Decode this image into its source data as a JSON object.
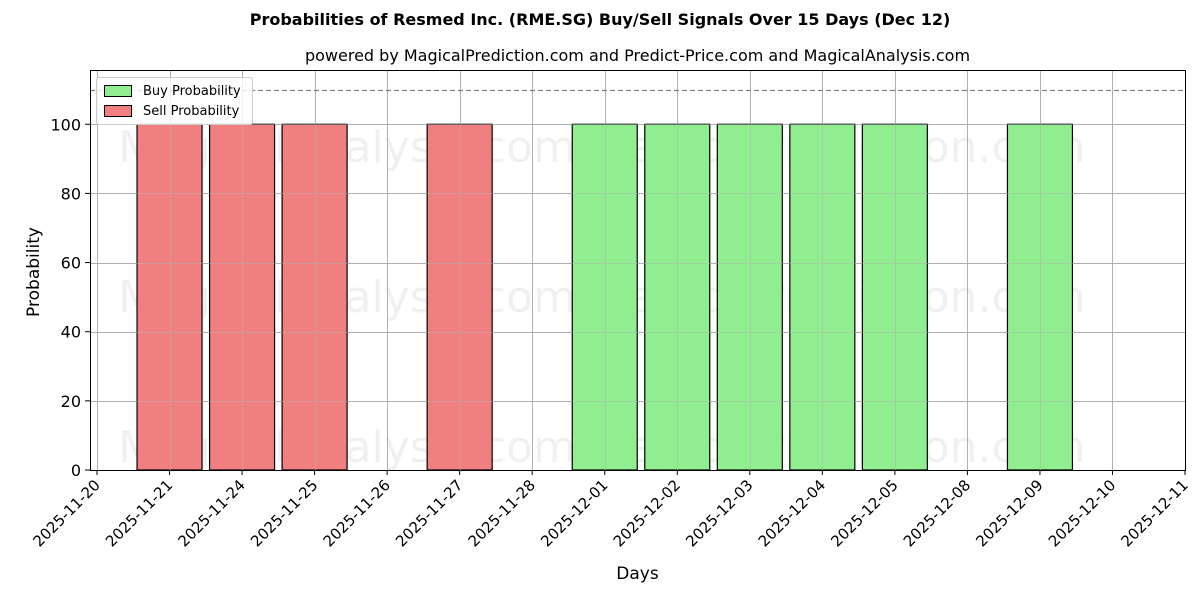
{
  "chart_data": {
    "type": "bar",
    "title": "Probabilities of Resmed Inc. (RME.SG) Buy/Sell Signals Over 15 Days (Dec 12)",
    "subtitle": "powered by MagicalPrediction.com and Predict-Price.com and MagicalAnalysis.com",
    "xlabel": "Days",
    "ylabel": "Probability",
    "ylim": [
      0,
      115.7
    ],
    "yticks": [
      0,
      20,
      40,
      60,
      80,
      100
    ],
    "reference_line": {
      "y": 110,
      "style": "dashed",
      "color": "#808080"
    },
    "grid": true,
    "legend_position": "upper left",
    "categories": [
      "2025-11-20",
      "2025-11-21",
      "2025-11-24",
      "2025-11-25",
      "2025-11-26",
      "2025-11-27",
      "2025-11-28",
      "2025-12-01",
      "2025-12-02",
      "2025-12-03",
      "2025-12-04",
      "2025-12-05",
      "2025-12-08",
      "2025-12-09",
      "2025-12-10",
      "2025-12-11"
    ],
    "series": [
      {
        "name": "Buy Probability",
        "color": "#90ee90",
        "values": [
          0,
          0,
          0,
          0,
          0,
          0,
          0,
          100,
          100,
          100,
          100,
          100,
          0,
          100,
          0,
          0
        ]
      },
      {
        "name": "Sell Probability",
        "color": "#f08080",
        "values": [
          0,
          100,
          100,
          100,
          0,
          100,
          0,
          0,
          0,
          0,
          0,
          0,
          0,
          0,
          0,
          0
        ]
      }
    ],
    "watermarks": [
      "MagicalAnalysis.com",
      "MagicalPrediction.com"
    ]
  }
}
